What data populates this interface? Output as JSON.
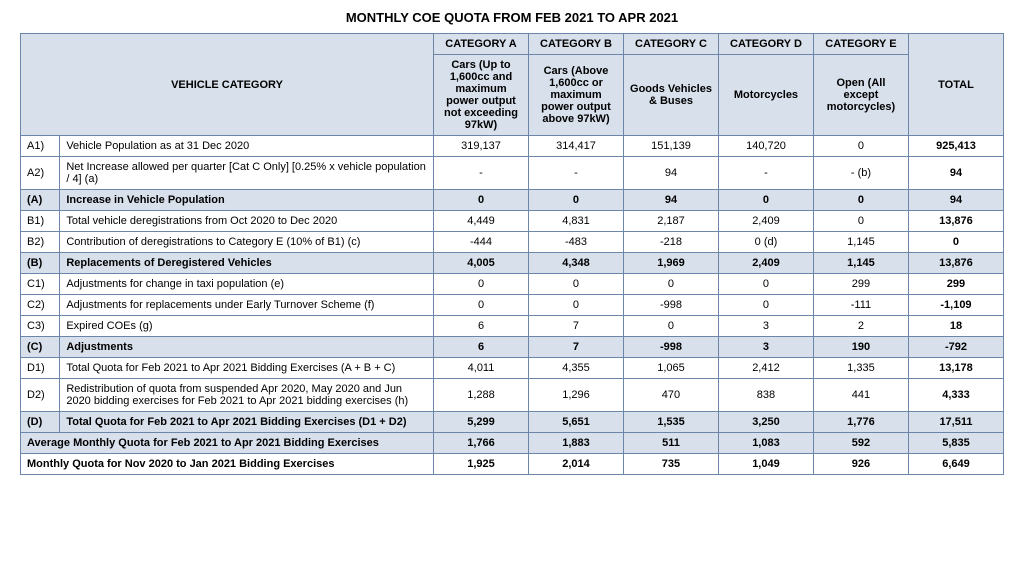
{
  "title": "MONTHLY COE QUOTA FROM FEB 2021 TO APR 2021",
  "header": {
    "vehicle_category": "VEHICLE CATEGORY",
    "total": "TOTAL",
    "cats": [
      {
        "top": "CATEGORY A",
        "sub": "Cars (Up to 1,600cc and maximum power output not exceeding 97kW)"
      },
      {
        "top": "CATEGORY B",
        "sub": "Cars (Above 1,600cc or maximum power output above 97kW)"
      },
      {
        "top": "CATEGORY C",
        "sub": "Goods Vehicles & Buses"
      },
      {
        "top": "CATEGORY D",
        "sub": "Motorcycles"
      },
      {
        "top": "CATEGORY E",
        "sub": "Open (All except motorcycles)"
      }
    ]
  },
  "rows": [
    {
      "code": "A1)",
      "desc": "Vehicle Population as at 31 Dec 2020",
      "v": [
        "319,137",
        "314,417",
        "151,139",
        "140,720",
        "0",
        "925,413"
      ]
    },
    {
      "code": "A2)",
      "desc": "Net Increase allowed per quarter [Cat C Only] [0.25% x vehicle population / 4] (a)",
      "v": [
        "-",
        "-",
        "94",
        "-",
        "- (b)",
        "94"
      ]
    },
    {
      "code": "(A)",
      "desc": "Increase in Vehicle Population",
      "v": [
        "0",
        "0",
        "94",
        "0",
        "0",
        "94"
      ],
      "section": true
    },
    {
      "code": "B1)",
      "desc": "Total vehicle deregistrations from Oct 2020 to Dec 2020",
      "v": [
        "4,449",
        "4,831",
        "2,187",
        "2,409",
        "0",
        "13,876"
      ]
    },
    {
      "code": "B2)",
      "desc": "Contribution of deregistrations to Category E (10% of B1) (c)",
      "v": [
        "-444",
        "-483",
        "-218",
        "0 (d)",
        "1,145",
        "0"
      ]
    },
    {
      "code": "(B)",
      "desc": "Replacements of Deregistered Vehicles",
      "v": [
        "4,005",
        "4,348",
        "1,969",
        "2,409",
        "1,145",
        "13,876"
      ],
      "section": true
    },
    {
      "code": "C1)",
      "desc": "Adjustments for change in taxi population (e)",
      "v": [
        "0",
        "0",
        "0",
        "0",
        "299",
        "299"
      ]
    },
    {
      "code": "C2)",
      "desc": "Adjustments for replacements under Early Turnover Scheme (f)",
      "v": [
        "0",
        "0",
        "-998",
        "0",
        "-111",
        "-1,109"
      ]
    },
    {
      "code": "C3)",
      "desc": "Expired COEs (g)",
      "v": [
        "6",
        "7",
        "0",
        "3",
        "2",
        "18"
      ]
    },
    {
      "code": "(C)",
      "desc": "Adjustments",
      "v": [
        "6",
        "7",
        "-998",
        "3",
        "190",
        "-792"
      ],
      "section": true
    },
    {
      "code": "D1)",
      "desc": "Total Quota for Feb 2021 to Apr 2021 Bidding Exercises (A + B + C)",
      "v": [
        "4,011",
        "4,355",
        "1,065",
        "2,412",
        "1,335",
        "13,178"
      ]
    },
    {
      "code": "D2)",
      "desc": "Redistribution of quota from suspended Apr 2020, May 2020 and Jun 2020 bidding exercises for Feb 2021 to Apr 2021 bidding exercises (h)",
      "v": [
        "1,288",
        "1,296",
        "470",
        "838",
        "441",
        "4,333"
      ]
    },
    {
      "code": "(D)",
      "desc": "Total Quota for Feb 2021 to Apr 2021 Bidding Exercises (D1 + D2)",
      "v": [
        "5,299",
        "5,651",
        "1,535",
        "3,250",
        "1,776",
        "17,511"
      ],
      "section": true
    },
    {
      "code": "",
      "desc": "Average Monthly Quota for Feb 2021 to Apr 2021 Bidding Exercises",
      "v": [
        "1,766",
        "1,883",
        "511",
        "1,083",
        "592",
        "5,835"
      ],
      "section": true,
      "span": true
    },
    {
      "code": "",
      "desc": "Monthly Quota for Nov 2020 to Jan 2021 Bidding Exercises",
      "v": [
        "1,925",
        "2,014",
        "735",
        "1,049",
        "926",
        "6,649"
      ],
      "span": true,
      "bold": true
    }
  ],
  "style": {
    "section_bg": "#d7e0eb",
    "border_color": "#6b86a8",
    "font_size_body": 11,
    "font_size_title": 13
  }
}
